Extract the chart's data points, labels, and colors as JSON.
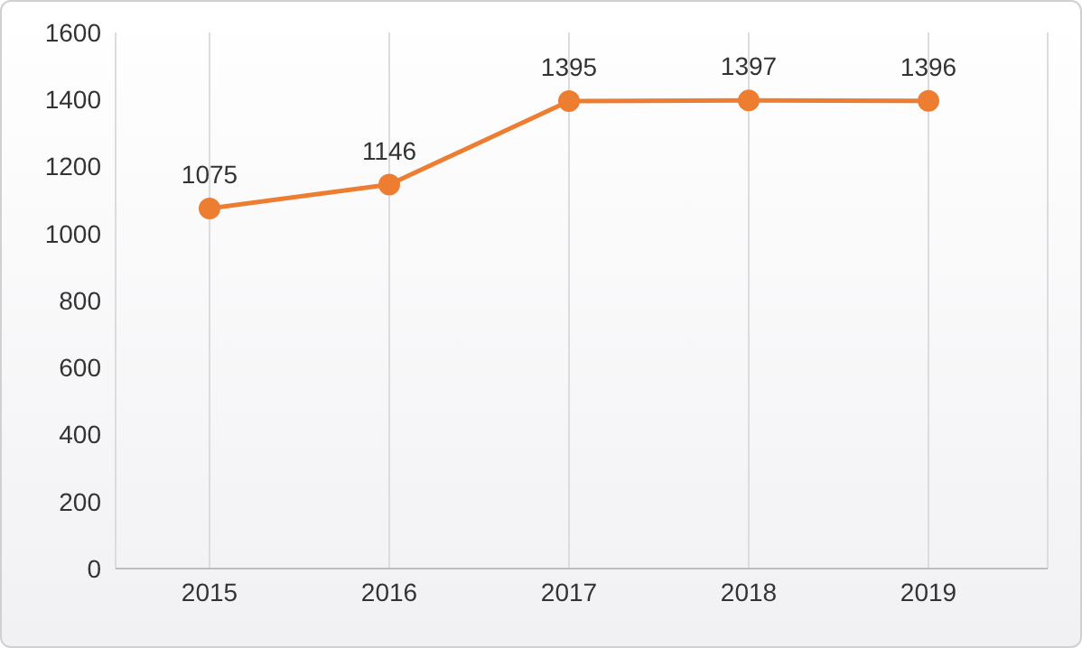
{
  "chart_data": {
    "type": "line",
    "categories": [
      "2015",
      "2016",
      "2017",
      "2018",
      "2019"
    ],
    "series": [
      {
        "color": "#ed7d31",
        "values": [
          1075,
          1146,
          1395,
          1397,
          1396
        ]
      }
    ],
    "ylim": [
      0,
      1600
    ],
    "yticks": [
      0,
      200,
      400,
      600,
      800,
      1000,
      1200,
      1400,
      1600
    ],
    "grid": "x",
    "marker": "circle",
    "data_labels": true
  }
}
